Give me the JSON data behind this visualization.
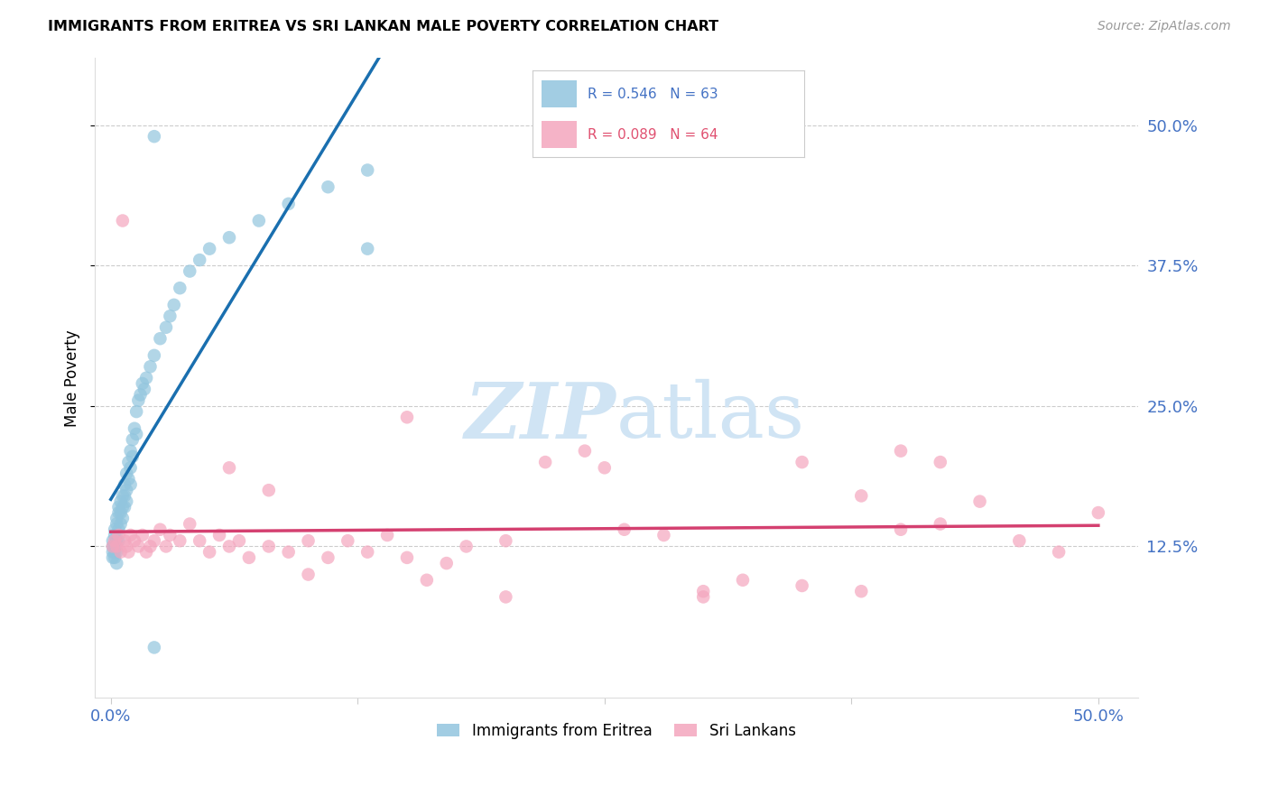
{
  "title": "IMMIGRANTS FROM ERITREA VS SRI LANKAN MALE POVERTY CORRELATION CHART",
  "source": "Source: ZipAtlas.com",
  "ylabel": "Male Poverty",
  "ytick_labels": [
    "50.0%",
    "37.5%",
    "25.0%",
    "12.5%"
  ],
  "ytick_values": [
    0.5,
    0.375,
    0.25,
    0.125
  ],
  "xlim": [
    0.0,
    0.5
  ],
  "ylim": [
    0.0,
    0.55
  ],
  "eritrea_color": "#92c5de",
  "srilanka_color": "#f4a6be",
  "eritrea_line_color": "#1a6faf",
  "srilanka_line_color": "#d44070",
  "dash_color": "#bbbbbb",
  "watermark_color": "#d0e4f4",
  "legend_eritrea_label": "R = 0.546   N = 63",
  "legend_srilanka_label": "R = 0.089   N = 64",
  "legend_eritrea_color": "#4472c4",
  "legend_srilanka_color": "#e05070",
  "bottom_legend_eritrea": "Immigrants from Eritrea",
  "bottom_legend_srilanka": "Sri Lankans",
  "background_color": "#ffffff",
  "grid_color": "#cccccc",
  "tick_color": "#4472c4",
  "eritrea_x": [
    0.001,
    0.001,
    0.001,
    0.001,
    0.002,
    0.002,
    0.002,
    0.002,
    0.002,
    0.003,
    0.003,
    0.003,
    0.003,
    0.003,
    0.004,
    0.004,
    0.004,
    0.004,
    0.005,
    0.005,
    0.005,
    0.006,
    0.006,
    0.006,
    0.007,
    0.007,
    0.007,
    0.008,
    0.008,
    0.008,
    0.009,
    0.009,
    0.01,
    0.01,
    0.01,
    0.011,
    0.011,
    0.012,
    0.013,
    0.013,
    0.014,
    0.015,
    0.016,
    0.017,
    0.018,
    0.02,
    0.022,
    0.025,
    0.028,
    0.03,
    0.032,
    0.035,
    0.04,
    0.045,
    0.05,
    0.06,
    0.075,
    0.09,
    0.11,
    0.13,
    0.022,
    0.13,
    0.022
  ],
  "eritrea_y": [
    0.13,
    0.125,
    0.12,
    0.115,
    0.14,
    0.135,
    0.125,
    0.12,
    0.115,
    0.15,
    0.145,
    0.13,
    0.12,
    0.11,
    0.16,
    0.155,
    0.14,
    0.13,
    0.165,
    0.155,
    0.145,
    0.17,
    0.16,
    0.15,
    0.18,
    0.17,
    0.16,
    0.19,
    0.175,
    0.165,
    0.2,
    0.185,
    0.21,
    0.195,
    0.18,
    0.22,
    0.205,
    0.23,
    0.245,
    0.225,
    0.255,
    0.26,
    0.27,
    0.265,
    0.275,
    0.285,
    0.295,
    0.31,
    0.32,
    0.33,
    0.34,
    0.355,
    0.37,
    0.38,
    0.39,
    0.4,
    0.415,
    0.43,
    0.445,
    0.46,
    0.49,
    0.39,
    0.035
  ],
  "srilanka_x": [
    0.001,
    0.002,
    0.003,
    0.004,
    0.005,
    0.006,
    0.007,
    0.008,
    0.009,
    0.01,
    0.012,
    0.014,
    0.016,
    0.018,
    0.02,
    0.022,
    0.025,
    0.028,
    0.03,
    0.035,
    0.04,
    0.045,
    0.05,
    0.055,
    0.06,
    0.065,
    0.07,
    0.08,
    0.09,
    0.1,
    0.11,
    0.12,
    0.13,
    0.14,
    0.15,
    0.16,
    0.17,
    0.18,
    0.2,
    0.22,
    0.24,
    0.26,
    0.28,
    0.3,
    0.32,
    0.35,
    0.38,
    0.4,
    0.42,
    0.44,
    0.46,
    0.48,
    0.5,
    0.35,
    0.38,
    0.42,
    0.06,
    0.08,
    0.1,
    0.2,
    0.3,
    0.4,
    0.15,
    0.25
  ],
  "srilanka_y": [
    0.125,
    0.13,
    0.125,
    0.135,
    0.12,
    0.415,
    0.13,
    0.125,
    0.12,
    0.135,
    0.13,
    0.125,
    0.135,
    0.12,
    0.125,
    0.13,
    0.14,
    0.125,
    0.135,
    0.13,
    0.145,
    0.13,
    0.12,
    0.135,
    0.125,
    0.13,
    0.115,
    0.125,
    0.12,
    0.13,
    0.115,
    0.13,
    0.12,
    0.135,
    0.115,
    0.095,
    0.11,
    0.125,
    0.13,
    0.2,
    0.21,
    0.14,
    0.135,
    0.08,
    0.095,
    0.2,
    0.17,
    0.21,
    0.145,
    0.165,
    0.13,
    0.12,
    0.155,
    0.09,
    0.085,
    0.2,
    0.195,
    0.175,
    0.1,
    0.08,
    0.085,
    0.14,
    0.24,
    0.195
  ]
}
